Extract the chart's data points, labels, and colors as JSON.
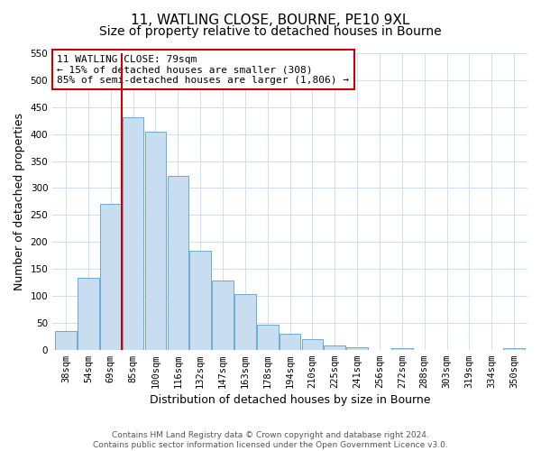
{
  "title": "11, WATLING CLOSE, BOURNE, PE10 9XL",
  "subtitle": "Size of property relative to detached houses in Bourne",
  "xlabel": "Distribution of detached houses by size in Bourne",
  "ylabel": "Number of detached properties",
  "bar_labels": [
    "38sqm",
    "54sqm",
    "69sqm",
    "85sqm",
    "100sqm",
    "116sqm",
    "132sqm",
    "147sqm",
    "163sqm",
    "178sqm",
    "194sqm",
    "210sqm",
    "225sqm",
    "241sqm",
    "256sqm",
    "272sqm",
    "288sqm",
    "303sqm",
    "319sqm",
    "334sqm",
    "350sqm"
  ],
  "bar_values": [
    35,
    133,
    271,
    432,
    404,
    322,
    184,
    128,
    103,
    46,
    30,
    20,
    8,
    5,
    0,
    2,
    0,
    0,
    0,
    0,
    3
  ],
  "bar_color": "#c9ddf0",
  "bar_edge_color": "#6aaad4",
  "vline_x_bar_index": 3,
  "property_line_label": "11 WATLING CLOSE: 79sqm",
  "annotation_line1": "← 15% of detached houses are smaller (308)",
  "annotation_line2": "85% of semi-detached houses are larger (1,806) →",
  "vline_color": "#cc0000",
  "annotation_box_edge": "#cc0000",
  "ylim": [
    0,
    550
  ],
  "yticks": [
    0,
    50,
    100,
    150,
    200,
    250,
    300,
    350,
    400,
    450,
    500,
    550
  ],
  "footer_line1": "Contains HM Land Registry data © Crown copyright and database right 2024.",
  "footer_line2": "Contains public sector information licensed under the Open Government Licence v3.0.",
  "title_fontsize": 11,
  "xlabel_fontsize": 9,
  "ylabel_fontsize": 9,
  "tick_fontsize": 7.5,
  "annotation_fontsize": 8,
  "footer_fontsize": 6.5,
  "grid_color": "#cde0f0"
}
